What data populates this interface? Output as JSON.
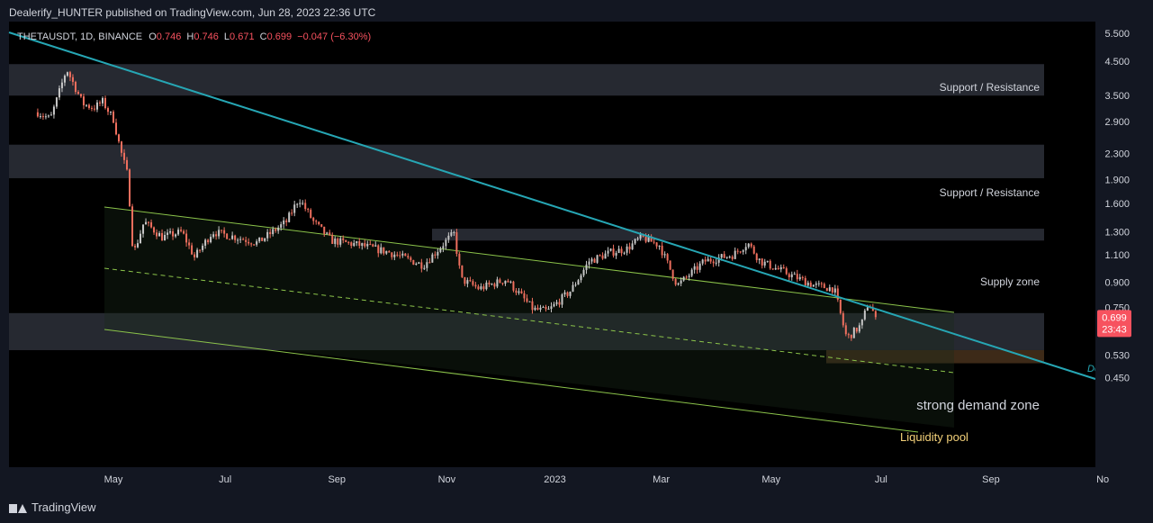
{
  "header": {
    "publisher_line": "Dealerify_HUNTER published on TradingView.com, Jun 28, 2023 22:36 UTC"
  },
  "symbol": {
    "name": "THETAUSDT, 1D, BINANCE",
    "o_label": "O",
    "o_value": "0.746",
    "h_label": "H",
    "h_value": "0.746",
    "l_label": "L",
    "l_value": "0.671",
    "c_label": "C",
    "c_value": "0.699",
    "change": "−0.047 (−6.30%)"
  },
  "footer": {
    "brand": "TradingView"
  },
  "colors": {
    "background": "#131722",
    "up": "#c8c8c8",
    "down": "#ef6f5e",
    "trendline": "#26a6b4",
    "channel": "#8bc34a",
    "zone": "#2a2d36",
    "liquidity": "#3d2a18",
    "price_tag": "#f7525f"
  },
  "chart_data": {
    "type": "candlestick",
    "price_scale": "log",
    "y_ticks": [
      "5.500",
      "4.500",
      "3.500",
      "2.900",
      "2.300",
      "1.900",
      "1.600",
      "1.300",
      "1.100",
      "0.900",
      "0.750",
      "0.530",
      "0.450"
    ],
    "x_ticks": [
      "May",
      "Jul",
      "Sep",
      "Nov",
      "2023",
      "Mar",
      "May",
      "Jul",
      "Sep",
      "No"
    ],
    "last_price": "0.699",
    "countdown": "23:43",
    "zones": [
      {
        "label": "Support / Resistance",
        "low": 3.5,
        "high": 4.4
      },
      {
        "label": "Support / Resistance",
        "low": 1.92,
        "high": 2.45
      },
      {
        "label": "Supply zone",
        "low": 1.22,
        "high": 1.33
      },
      {
        "label": "strong demand zone",
        "low": 0.55,
        "high": 0.72
      },
      {
        "label": "Liquidity pool",
        "low": 0.5,
        "high": 0.55
      }
    ],
    "trendline_label": "De",
    "price_series": [
      [
        "2022-03-20",
        3.1
      ],
      [
        "2022-03-27",
        2.95
      ],
      [
        "2022-04-01",
        3.6
      ],
      [
        "2022-04-05",
        4.25
      ],
      [
        "2022-04-09",
        3.8
      ],
      [
        "2022-04-14",
        3.3
      ],
      [
        "2022-04-20",
        3.2
      ],
      [
        "2022-04-25",
        3.35
      ],
      [
        "2022-05-01",
        2.95
      ],
      [
        "2022-05-05",
        2.35
      ],
      [
        "2022-05-09",
        1.95
      ],
      [
        "2022-05-12",
        1.1
      ],
      [
        "2022-05-18",
        1.4
      ],
      [
        "2022-05-28",
        1.25
      ],
      [
        "2022-06-08",
        1.3
      ],
      [
        "2022-06-15",
        1.08
      ],
      [
        "2022-06-25",
        1.3
      ],
      [
        "2022-07-08",
        1.25
      ],
      [
        "2022-07-20",
        1.2
      ],
      [
        "2022-08-05",
        1.4
      ],
      [
        "2022-08-12",
        1.66
      ],
      [
        "2022-08-20",
        1.4
      ],
      [
        "2022-08-30",
        1.22
      ],
      [
        "2022-09-15",
        1.18
      ],
      [
        "2022-10-01",
        1.12
      ],
      [
        "2022-10-20",
        1.02
      ],
      [
        "2022-11-03",
        1.24
      ],
      [
        "2022-11-06",
        1.28
      ],
      [
        "2022-11-10",
        0.92
      ],
      [
        "2022-11-20",
        0.86
      ],
      [
        "2022-12-05",
        0.92
      ],
      [
        "2022-12-20",
        0.74
      ],
      [
        "2022-12-28",
        0.73
      ],
      [
        "2023-01-10",
        0.85
      ],
      [
        "2023-01-20",
        1.05
      ],
      [
        "2023-02-01",
        1.12
      ],
      [
        "2023-02-10",
        1.15
      ],
      [
        "2023-02-18",
        1.25
      ],
      [
        "2023-02-28",
        1.18
      ],
      [
        "2023-03-10",
        0.88
      ],
      [
        "2023-03-25",
        1.05
      ],
      [
        "2023-04-10",
        1.1
      ],
      [
        "2023-04-18",
        1.2
      ],
      [
        "2023-04-25",
        1.05
      ],
      [
        "2023-05-10",
        0.96
      ],
      [
        "2023-05-25",
        0.88
      ],
      [
        "2023-06-05",
        0.86
      ],
      [
        "2023-06-10",
        0.66
      ],
      [
        "2023-06-12",
        0.6
      ],
      [
        "2023-06-20",
        0.66
      ],
      [
        "2023-06-24",
        0.78
      ],
      [
        "2023-06-28",
        0.699
      ]
    ]
  }
}
